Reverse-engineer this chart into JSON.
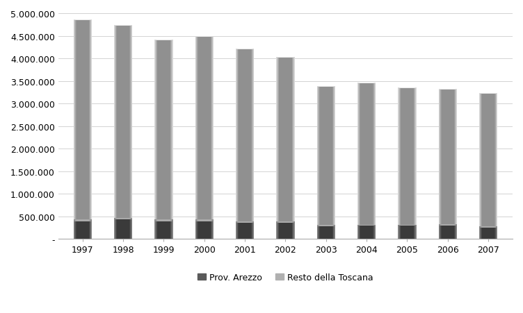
{
  "years": [
    "1997",
    "1998",
    "1999",
    "2000",
    "2001",
    "2002",
    "2003",
    "2004",
    "2005",
    "2006",
    "2007"
  ],
  "prov_arezzo": [
    430000,
    470000,
    430000,
    430000,
    390000,
    390000,
    310000,
    320000,
    320000,
    330000,
    280000
  ],
  "resto_toscana": [
    4430000,
    4270000,
    3990000,
    4060000,
    3830000,
    3640000,
    3070000,
    3140000,
    3030000,
    3000000,
    2950000
  ],
  "color_arezzo_main": "#5a5a5a",
  "color_arezzo_light": "#888888",
  "color_arezzo_dark": "#3a3a3a",
  "color_resto_main": "#b0b0b0",
  "color_resto_light": "#d8d8d8",
  "color_resto_dark": "#909090",
  "ylim": [
    0,
    5000000
  ],
  "yticks": [
    0,
    500000,
    1000000,
    1500000,
    2000000,
    2500000,
    3000000,
    3500000,
    4000000,
    4500000,
    5000000
  ],
  "ytick_labels": [
    "-",
    "500.000",
    "1.000.000",
    "1.500.000",
    "2.000.000",
    "2.500.000",
    "3.000.000",
    "3.500.000",
    "4.000.000",
    "4.500.000",
    "5.000.000"
  ],
  "legend_arezzo": "Prov. Arezzo",
  "legend_resto": "Resto della Toscana",
  "background_color": "#ffffff",
  "bar_width": 0.45,
  "gradient_steps": 40
}
